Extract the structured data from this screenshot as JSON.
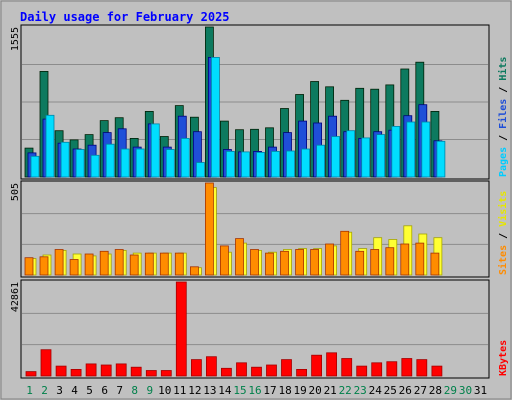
{
  "chart_data": {
    "type": "bar",
    "title": "Daily usage for February 2025",
    "x": [
      "1",
      "2",
      "3",
      "4",
      "5",
      "6",
      "7",
      "8",
      "9",
      "10",
      "11",
      "12",
      "13",
      "14",
      "15",
      "16",
      "17",
      "18",
      "19",
      "20",
      "21",
      "22",
      "23",
      "24",
      "25",
      "26",
      "27",
      "28",
      "29",
      "30",
      "31"
    ],
    "weekend_days": [
      "1",
      "2",
      "8",
      "9",
      "15",
      "16",
      "22",
      "23",
      "29",
      "30"
    ],
    "panels": [
      {
        "id": "top",
        "ylabel_parts": [
          "Pages",
          "Files",
          "Hits"
        ],
        "ymax_label": "1555",
        "ylim": [
          0,
          1555
        ],
        "series": [
          {
            "name": "Hits",
            "color": "#0d7a5f",
            "values": [
              300,
              1095,
              480,
              385,
              440,
              585,
              615,
              400,
              680,
              420,
              740,
              620,
              1555,
              580,
              490,
              495,
              510,
              710,
              855,
              990,
              935,
              795,
              920,
              910,
              955,
              1120,
              1190,
              680,
              null,
              null,
              null
            ]
          },
          {
            "name": "Files",
            "color": "#1f4fd8",
            "values": [
              250,
              600,
              350,
              290,
              330,
              460,
              500,
              310,
              550,
              310,
              630,
              470,
              1240,
              285,
              260,
              265,
              310,
              460,
              580,
              560,
              630,
              470,
              400,
              470,
              485,
              635,
              750,
              375,
              null,
              null,
              null
            ]
          },
          {
            "name": "Pages",
            "color": "#00ddff",
            "values": [
              215,
              640,
              360,
              285,
              225,
              340,
              290,
              290,
              550,
              285,
              400,
              150,
              1240,
              265,
              260,
              255,
              265,
              270,
              290,
              330,
              420,
              480,
              405,
              440,
              525,
              570,
              570,
              370,
              null,
              null,
              null
            ]
          }
        ]
      },
      {
        "id": "mid",
        "ylabel_parts": [
          "Sites",
          "Visits"
        ],
        "ymax_label": "505",
        "ylim": [
          0,
          505
        ],
        "series": [
          {
            "name": "Visits",
            "color": "#ffff33",
            "values": [
              90,
              110,
              135,
              115,
              105,
              115,
              135,
              120,
              120,
              120,
              120,
              40,
              480,
              125,
              175,
              135,
              125,
              140,
              145,
              145,
              160,
              235,
              145,
              205,
              195,
              270,
              225,
              205,
              null,
              null,
              null
            ]
          },
          {
            "name": "Sites",
            "color": "#ff8c00",
            "values": [
              95,
              100,
              140,
              85,
              115,
              130,
              140,
              110,
              120,
              120,
              120,
              45,
              505,
              160,
              200,
              140,
              120,
              130,
              140,
              140,
              170,
              240,
              130,
              140,
              150,
              170,
              175,
              120,
              null,
              null,
              null
            ]
          }
        ]
      },
      {
        "id": "bot",
        "ylabel_parts": [
          "KBytes"
        ],
        "ymax_label": "42861",
        "ylim": [
          0,
          42861
        ],
        "series": [
          {
            "name": "KBytes",
            "color": "#ff0000",
            "values": [
              2000,
              12000,
              4500,
              3000,
              5500,
              5000,
              5500,
              4000,
              2500,
              2500,
              42861,
              7500,
              8800,
              3500,
              6000,
              4000,
              5000,
              7500,
              3000,
              9500,
              10600,
              8000,
              4500,
              6000,
              6500,
              8000,
              7500,
              4500,
              null,
              null,
              null
            ]
          }
        ]
      }
    ]
  }
}
